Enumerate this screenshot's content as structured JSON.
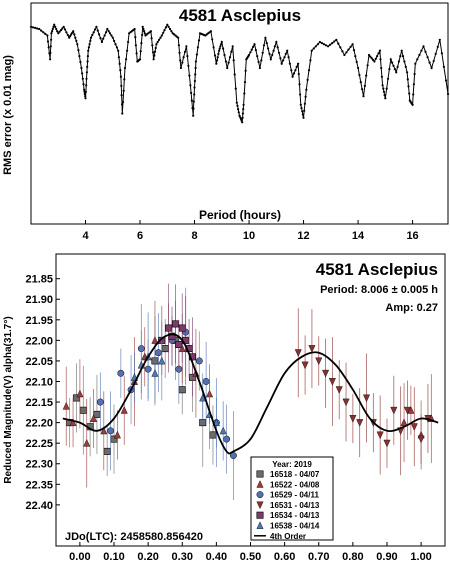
{
  "chart_data": [
    {
      "type": "line",
      "title": "4581 Asclepius",
      "xlabel": "Period (hours)",
      "ylabel": "RMS error (x 0.01 mag)",
      "xlim": [
        2,
        17.3
      ],
      "ylim": [
        0,
        10.2
      ],
      "x_ticks": [
        4,
        6,
        8,
        10,
        12,
        14,
        16
      ],
      "grid": false,
      "x": [
        2.0,
        2.3,
        2.6,
        2.7,
        2.75,
        2.85,
        3.0,
        3.2,
        3.4,
        3.55,
        3.7,
        3.85,
        3.95,
        4.0,
        4.05,
        4.1,
        4.2,
        4.4,
        4.6,
        4.8,
        5.0,
        5.2,
        5.3,
        5.35,
        5.45,
        5.6,
        5.8,
        5.9,
        6.0,
        6.1,
        6.2,
        6.4,
        6.5,
        6.6,
        6.8,
        7.0,
        7.2,
        7.4,
        7.5,
        7.7,
        7.85,
        7.95,
        8.0,
        8.05,
        8.2,
        8.4,
        8.6,
        8.8,
        8.9,
        9.0,
        9.2,
        9.4,
        9.55,
        9.65,
        9.75,
        9.8,
        9.9,
        10.0,
        10.2,
        10.4,
        10.6,
        10.8,
        11.0,
        11.2,
        11.4,
        11.6,
        11.8,
        11.9,
        12.0,
        12.1,
        12.3,
        12.6,
        12.9,
        13.2,
        13.5,
        13.8,
        14.0,
        14.2,
        14.4,
        14.6,
        14.8,
        14.9,
        15.0,
        15.2,
        15.4,
        15.6,
        15.8,
        15.9,
        16.0,
        16.1,
        16.4,
        16.7,
        17.0,
        17.3
      ],
      "y": [
        9.1,
        9.0,
        8.7,
        7.6,
        8.8,
        9.2,
        8.8,
        9.1,
        8.6,
        8.9,
        8.3,
        7.2,
        6.2,
        5.8,
        7.0,
        8.0,
        8.6,
        9.1,
        8.4,
        9.0,
        8.6,
        8.0,
        6.8,
        5.1,
        7.2,
        8.8,
        9.0,
        7.5,
        7.6,
        9.1,
        8.7,
        8.9,
        7.6,
        8.3,
        8.7,
        9.2,
        8.8,
        8.6,
        7.2,
        8.2,
        6.4,
        5.0,
        6.3,
        7.5,
        8.8,
        8.7,
        8.9,
        7.4,
        8.0,
        8.4,
        7.2,
        8.2,
        5.6,
        5.0,
        4.7,
        5.5,
        7.6,
        7.8,
        8.3,
        7.2,
        8.6,
        7.6,
        8.4,
        7.4,
        8.0,
        6.8,
        7.4,
        5.5,
        4.9,
        6.2,
        8.0,
        8.4,
        8.2,
        8.5,
        7.8,
        8.3,
        7.2,
        5.9,
        7.8,
        7.5,
        8.0,
        6.4,
        5.8,
        7.6,
        7.0,
        8.0,
        7.0,
        5.7,
        5.5,
        7.4,
        8.2,
        7.2,
        8.5,
        6.0
      ]
    },
    {
      "type": "scatter",
      "title": "4581 Asclepius",
      "subtitle_lines": [
        "Period: 8.006 ± 0.005 h",
        "Amp: 0.27"
      ],
      "ylabel": "Reduced Magnitude(V) alpha(31.7°)",
      "xlim": [
        -0.07,
        1.07
      ],
      "ylim": [
        22.5,
        21.79
      ],
      "x_ticks": [
        "0.00",
        "0.10",
        "0.20",
        "0.30",
        "0.40",
        "0.50",
        "0.60",
        "0.70",
        "0.80",
        "0.90",
        "1.00"
      ],
      "y_ticks": [
        "21.85",
        "21.90",
        "21.95",
        "22.00",
        "22.05",
        "22.10",
        "22.15",
        "22.20",
        "22.25",
        "22.30",
        "22.35",
        "22.40"
      ],
      "annotation": "JDo(LTC): 2458580.856420",
      "legend": {
        "placement": "bottom-right",
        "title": "Year: 2019",
        "entries": [
          "16518 - 04/07",
          "16522 - 04/08",
          "16529 - 04/11",
          "16531 - 04/13",
          "16534 - 04/13",
          "16538 - 04/14",
          "4th Order"
        ]
      },
      "series": [
        {
          "name": "16518 - 04/07",
          "color": "#6b6b6b",
          "marker": "square",
          "x": [
            -0.03,
            -0.01,
            0.01,
            0.03,
            0.05,
            0.08,
            0.1,
            0.22,
            0.25,
            0.28,
            0.3,
            0.33,
            0.36,
            0.39
          ],
          "y": [
            22.2,
            22.14,
            22.17,
            22.21,
            22.18,
            22.27,
            22.24,
            22.05,
            22.02,
            22.0,
            22.12,
            22.09,
            22.2,
            22.23
          ]
        },
        {
          "name": "16522 - 04/08",
          "color": "#9b3c3c",
          "marker": "triangle-up",
          "x": [
            -0.04,
            -0.02,
            0.0,
            0.02,
            0.04,
            0.07,
            0.11,
            0.13,
            0.16,
            0.19,
            0.22,
            0.26,
            0.3,
            0.34,
            0.38,
            0.95,
            0.97,
            1.0,
            1.03
          ],
          "y": [
            22.16,
            22.2,
            22.13,
            22.25,
            22.19,
            22.22,
            22.23,
            22.17,
            22.1,
            22.04,
            22.0,
            21.97,
            22.02,
            22.08,
            22.13,
            22.2,
            22.17,
            22.23,
            22.19
          ]
        },
        {
          "name": "16529 - 04/11",
          "color": "#5570b0",
          "marker": "circle",
          "x": [
            0.06,
            0.09,
            0.12,
            0.15,
            0.18,
            0.2,
            0.23,
            0.27,
            0.29,
            0.31,
            0.35,
            0.37,
            0.4,
            0.43,
            0.45
          ],
          "y": [
            22.15,
            22.22,
            22.08,
            22.12,
            22.02,
            22.07,
            22.03,
            22.0,
            22.07,
            21.98,
            22.05,
            22.1,
            22.2,
            22.24,
            22.28
          ]
        },
        {
          "name": "16531 - 04/13",
          "color": "#8a3030",
          "marker": "triangle-down",
          "x": [
            0.64,
            0.66,
            0.68,
            0.7,
            0.72,
            0.74,
            0.76,
            0.78,
            0.8,
            0.82,
            0.84,
            0.86,
            0.88,
            0.9,
            0.92,
            0.94,
            0.96,
            0.98,
            1.0,
            1.02
          ],
          "y": [
            22.03,
            22.06,
            22.02,
            22.05,
            22.08,
            22.1,
            22.12,
            22.15,
            22.19,
            22.2,
            22.14,
            22.2,
            22.23,
            22.25,
            22.17,
            22.22,
            22.17,
            22.21,
            22.24,
            22.19
          ]
        },
        {
          "name": "16534 - 04/13",
          "color": "#7a3a6a",
          "marker": "square",
          "x": [
            0.24,
            0.26,
            0.27,
            0.28,
            0.29,
            0.3,
            0.31,
            0.32,
            0.33
          ],
          "y": [
            22.0,
            21.97,
            21.99,
            21.96,
            22.01,
            21.97,
            22.0,
            22.02,
            22.04
          ]
        },
        {
          "name": "16538 - 04/14",
          "color": "#4a78b8",
          "marker": "triangle-up",
          "x": [
            0.16,
            0.18,
            0.2,
            0.22,
            0.24,
            0.36,
            0.38,
            0.4,
            0.42
          ],
          "y": [
            22.09,
            22.06,
            22.04,
            22.08,
            22.05,
            22.14,
            22.18,
            22.2,
            22.22
          ]
        }
      ],
      "fit": {
        "name": "4th Order",
        "x": [
          -0.05,
          0.0,
          0.05,
          0.1,
          0.15,
          0.2,
          0.25,
          0.3,
          0.35,
          0.4,
          0.43,
          0.45,
          0.5,
          0.55,
          0.6,
          0.65,
          0.7,
          0.75,
          0.8,
          0.85,
          0.9,
          0.95,
          1.0,
          1.05
        ],
        "y": [
          22.19,
          22.2,
          22.22,
          22.19,
          22.12,
          22.04,
          21.99,
          22.0,
          22.1,
          22.22,
          22.27,
          22.27,
          22.24,
          22.16,
          22.08,
          22.04,
          22.03,
          22.06,
          22.12,
          22.19,
          22.22,
          22.21,
          22.19,
          22.2
        ]
      }
    }
  ]
}
